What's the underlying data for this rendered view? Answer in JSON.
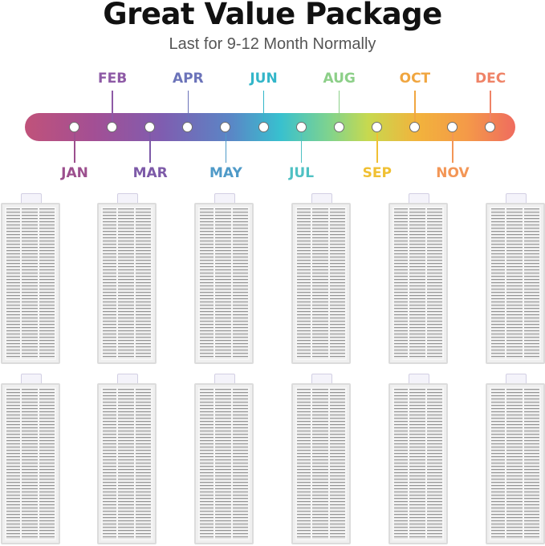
{
  "header": {
    "title": "Great Value Package",
    "subtitle": "Last for 9-12 Month Normally"
  },
  "timeline": {
    "months_above": [
      {
        "label": "FEB",
        "color": "#8e5aa6"
      },
      {
        "label": "APR",
        "color": "#6b73b9"
      },
      {
        "label": "JUN",
        "color": "#33b6c9"
      },
      {
        "label": "AUG",
        "color": "#8ccf88"
      },
      {
        "label": "OCT",
        "color": "#f0a640"
      },
      {
        "label": "DEC",
        "color": "#ef8367"
      }
    ],
    "months_below": [
      {
        "label": "JAN",
        "color": "#9c4f8e"
      },
      {
        "label": "MAR",
        "color": "#7d5aa8"
      },
      {
        "label": "MAY",
        "color": "#4f9ac8"
      },
      {
        "label": "JUL",
        "color": "#4fc1c3"
      },
      {
        "label": "SEP",
        "color": "#f0c033"
      },
      {
        "label": "NOV",
        "color": "#f39656"
      }
    ]
  },
  "filters": {
    "count": 12,
    "rows": 2,
    "per_row": 6,
    "icon": "hepa-filter-icon"
  }
}
